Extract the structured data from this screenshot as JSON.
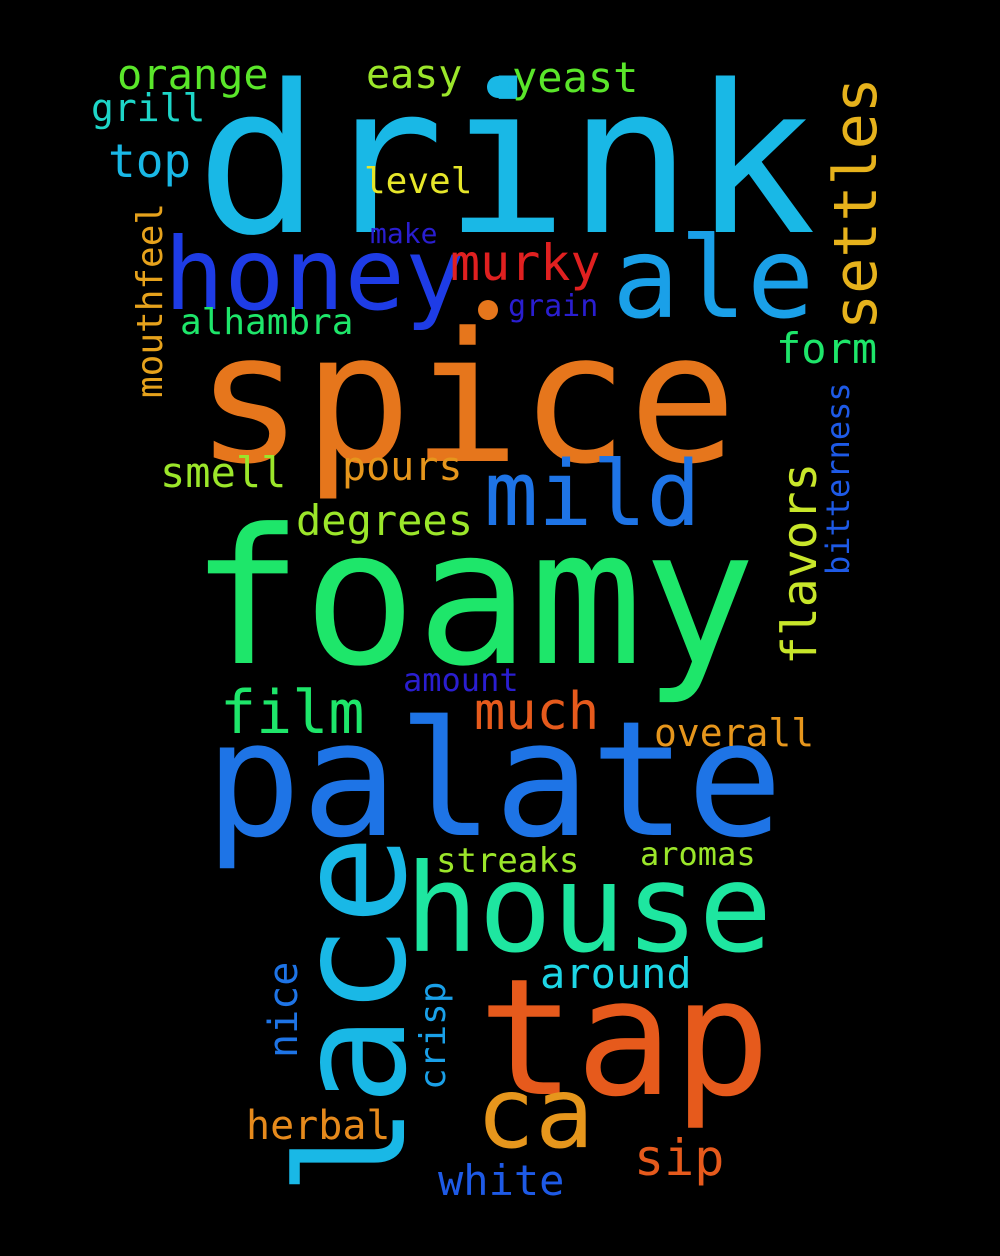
{
  "colors": {
    "background": "#000000",
    "cyan": "#19b8e6",
    "sky_blue": "#1aa0e8",
    "orange": "#e6761c",
    "red_orange": "#e65a1c",
    "red": "#e02020",
    "green": "#1ee66a",
    "lime": "#9be62a",
    "yellow_green": "#c8e62a",
    "gold": "#e6b21c",
    "blue": "#1e74e6",
    "royal_blue": "#1e3ce6",
    "indigo": "#2a1ed0",
    "teal": "#1ed6c8"
  },
  "words": {
    "drink": "drink",
    "spice": "spice",
    "foamy": "foamy",
    "palate": "palate",
    "honey": "honey",
    "ale": "ale",
    "mild": "mild",
    "house": "house",
    "tap": "tap",
    "lace": "lace",
    "ca": "ca",
    "settles": "settles",
    "murky": "murky",
    "film": "film",
    "much": "much",
    "form": "form",
    "flavors": "flavors",
    "orange": "orange",
    "easy": "easy",
    "yeast": "yeast",
    "grill": "grill",
    "top": "top",
    "level": "level",
    "make": "make",
    "grain": "grain",
    "alhambra": "alhambra",
    "mouthfeel": "mouthfeel",
    "smell": "smell",
    "pours": "pours",
    "degrees": "degrees",
    "bitterness": "bitterness",
    "amount": "amount",
    "overall": "overall",
    "streaks": "streaks",
    "aromas": "aromas",
    "around": "around",
    "nice": "nice",
    "crisp": "crisp",
    "herbal": "herbal",
    "sip": "sip",
    "white": "white"
  }
}
